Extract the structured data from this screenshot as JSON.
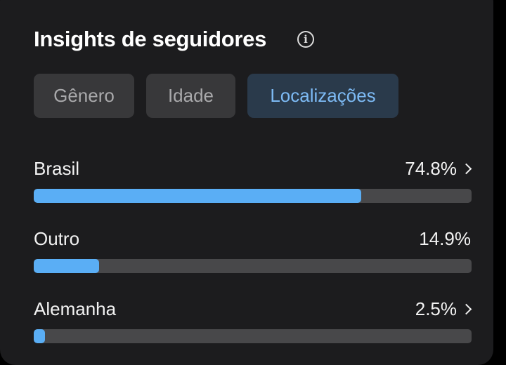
{
  "header": {
    "title": "Insights de seguidores"
  },
  "tabs": [
    {
      "label": "Gênero"
    },
    {
      "label": "Idade"
    },
    {
      "label": "Localizações"
    }
  ],
  "rows": [
    {
      "label": "Brasil",
      "value": 74.8,
      "value_label": "74.8%"
    },
    {
      "label": "Outro",
      "value": 14.9,
      "value_label": "14.9%"
    },
    {
      "label": "Alemanha",
      "value": 2.5,
      "value_label": "2.5%"
    }
  ]
}
